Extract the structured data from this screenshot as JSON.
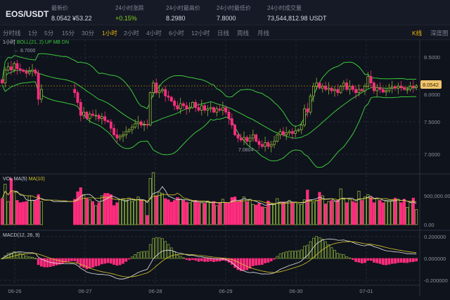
{
  "header": {
    "pair": "EOS/USDT",
    "stats": [
      {
        "label": "最新价",
        "value": "8.0542  ¥53.22"
      },
      {
        "label": "24小时涨跌",
        "value": "+0.15%",
        "color": "#7ed321"
      },
      {
        "label": "24小时最高价",
        "value": "8.2980"
      },
      {
        "label": "24小时最低价",
        "value": "7.8000"
      },
      {
        "label": "24小时成交量",
        "value": "73,544,812.98 USDT"
      }
    ]
  },
  "tabs": {
    "intervals": [
      "分时线",
      "1分",
      "5分",
      "15分",
      "30分",
      "1小时",
      "2小时",
      "4小时",
      "6小时",
      "12小时",
      "日线",
      "周线",
      "月线"
    ],
    "active": "1小时",
    "kline": "K线",
    "depth": "深度图"
  },
  "indicators": {
    "main_interval": "1小时",
    "boll": "BOLL(21, 2) UP MB DN",
    "vol_a": "VOL MA(5)",
    "vol_b": "MA(10)",
    "macd": "MACD(12, 26, 9)"
  },
  "colors": {
    "up": "#8db33a",
    "down": "#ff2d7e",
    "boll": "#3cc83c",
    "ma5": "#e6e6e6",
    "ma10": "#d4c72a",
    "accent": "#f0b90b"
  },
  "chart_data": {
    "type": "candlestick",
    "price_axis": [
      "8.5000",
      "8.0000",
      "7.5000",
      "7.0000"
    ],
    "price_ticks": [
      8.5,
      8.0,
      7.5,
      7.0
    ],
    "volume_axis": [
      "500,000.00",
      "0.00"
    ],
    "macd_axis": [
      "0.200000",
      "0.000000",
      "-0.200000"
    ],
    "dates": [
      "06-26",
      "06-27",
      "06-28",
      "06-29",
      "06-30",
      "07-01"
    ],
    "last_price": "8.0542",
    "max_label": "8.7000",
    "min_label": "7.0804",
    "closes": [
      8.1,
      8.3,
      8.35,
      8.3,
      8.4,
      8.32,
      8.3,
      8.28,
      8.25,
      8.28,
      8.3,
      8.25,
      7.85,
      8.0,
      null,
      null,
      null,
      null,
      null,
      null,
      null,
      null,
      null,
      null,
      7.95,
      7.8,
      7.6,
      7.65,
      7.55,
      7.62,
      7.6,
      7.6,
      7.55,
      7.58,
      7.52,
      7.5,
      7.4,
      7.3,
      7.25,
      7.28,
      7.3,
      7.35,
      7.38,
      7.42,
      7.47,
      7.5,
      7.45,
      7.46,
      7.45,
      7.95,
      8.1,
      7.95,
      7.98,
      8.0,
      7.9,
      7.88,
      7.82,
      7.75,
      7.7,
      7.78,
      7.75,
      7.7,
      7.72,
      7.8,
      7.72,
      7.68,
      7.75,
      7.68,
      7.7,
      7.72,
      7.65,
      7.7,
      7.68,
      7.72,
      7.65,
      7.55,
      7.45,
      7.3,
      7.25,
      7.22,
      7.26,
      7.2,
      7.25,
      7.3,
      7.2,
      7.15,
      7.12,
      7.18,
      7.12,
      7.15,
      7.2,
      7.3,
      7.35,
      7.3,
      7.33,
      7.35,
      7.32,
      7.36,
      7.38,
      7.45,
      7.7,
      7.65,
      7.9,
      8.05,
      8.1,
      8.02,
      8.05,
      8.0,
      8.02,
      7.98,
      8.0,
      7.95,
      8.05,
      8.1,
      8.0,
      8.05,
      8.0,
      7.95,
      8.0,
      7.98,
      8.05,
      8.2,
      8.1,
      7.98,
      8.03,
      8.0,
      7.96,
      7.98,
      8.02,
      8.04,
      8.02,
      8.05,
      8.03,
      8.0,
      8.0,
      8.05,
      8.03,
      8.0542
    ],
    "volumes_k": [
      450,
      700,
      400,
      800,
      560,
      420,
      380,
      390,
      400,
      500,
      420,
      420,
      520,
      400,
      null,
      null,
      null,
      null,
      null,
      null,
      null,
      null,
      null,
      null,
      440,
      570,
      640,
      520,
      450,
      430,
      400,
      330,
      380,
      500,
      540,
      540,
      520,
      330,
      380,
      430,
      450,
      420,
      460,
      400,
      420,
      480,
      420,
      420,
      160,
      800,
      900,
      500,
      560,
      540,
      450,
      430,
      390,
      420,
      470,
      450,
      420,
      390,
      380,
      400,
      420,
      380,
      380,
      370,
      410,
      380,
      400,
      330,
      370,
      440,
      380,
      370,
      470,
      480,
      400,
      420,
      480,
      400,
      440,
      350,
      340,
      370,
      310,
      300,
      410,
      360,
      360,
      450,
      380,
      390,
      380,
      420,
      380,
      380,
      360,
      350,
      430,
      600,
      420,
      380,
      420,
      560,
      500,
      360,
      400,
      420,
      400,
      420,
      620,
      440,
      380,
      440,
      400,
      380,
      580,
      420,
      480,
      520,
      470,
      380,
      460,
      420,
      380,
      420,
      400,
      420,
      460,
      440,
      380,
      440,
      300,
      380,
      460,
      260
    ]
  }
}
